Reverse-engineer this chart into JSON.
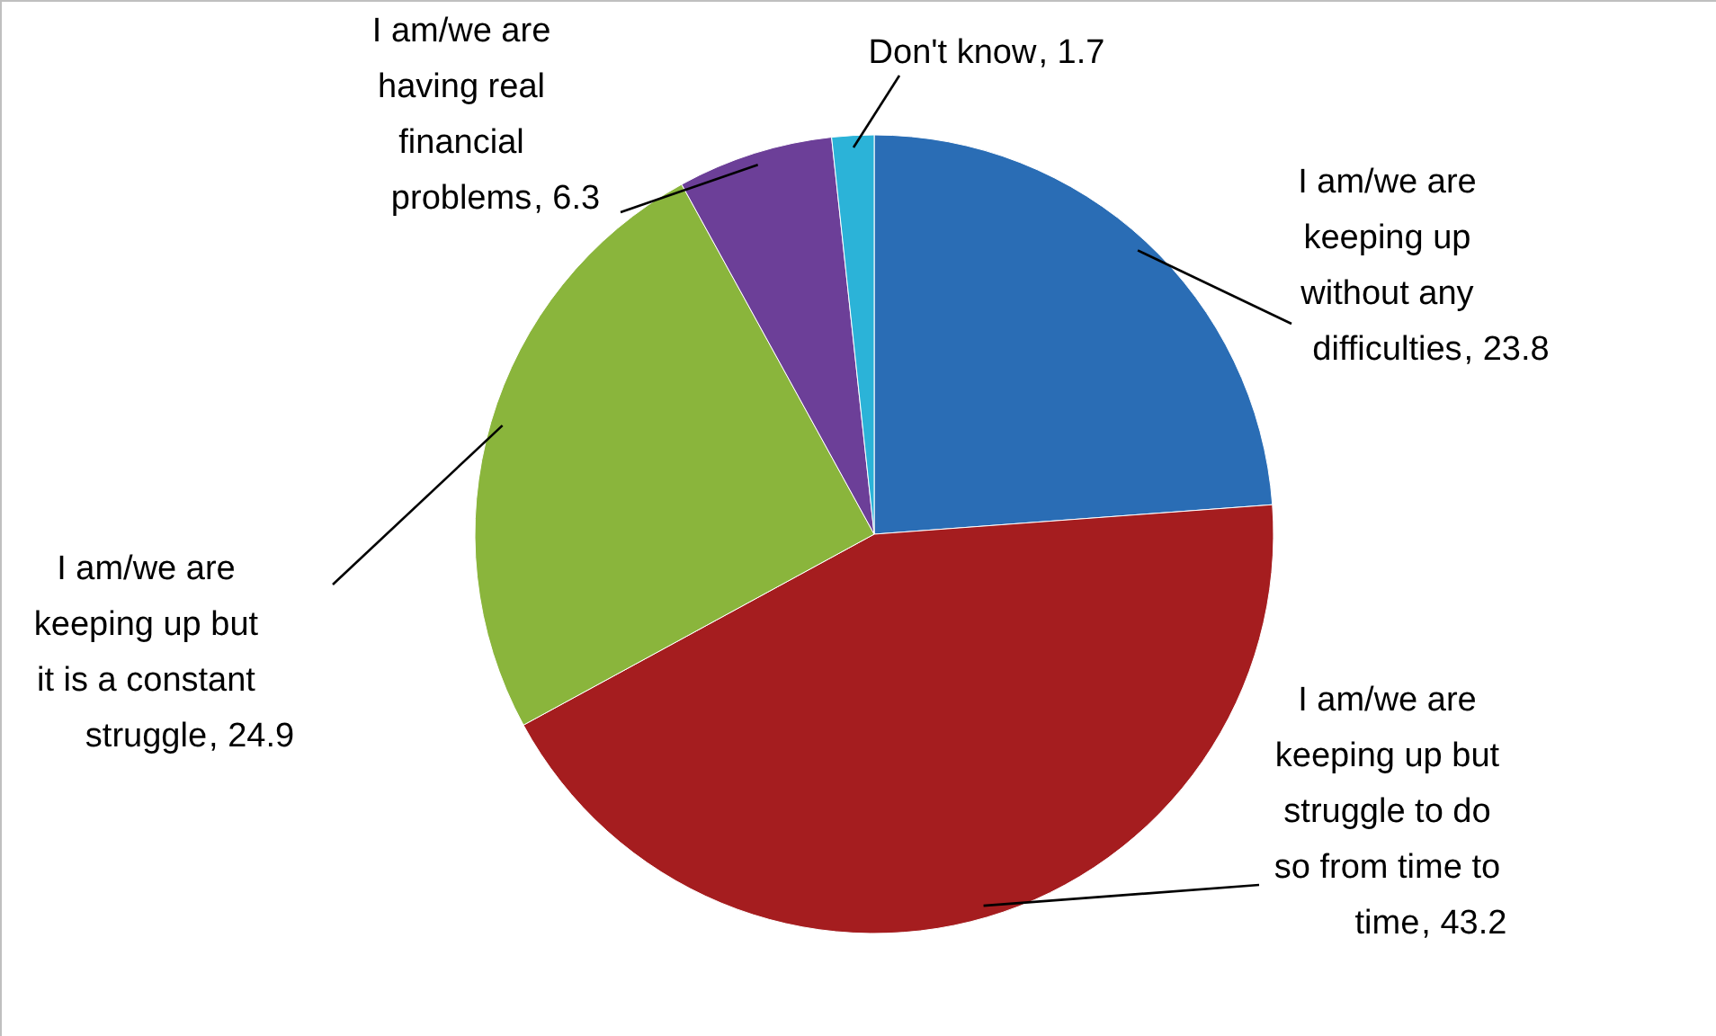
{
  "chart_data": {
    "type": "pie",
    "categories": [
      "I am/we are keeping up without any difficulties",
      "I am/we are keeping up but struggle to do so from time to time",
      "I am/we are keeping up but it is a constant struggle",
      "I am/we are having real financial problems",
      "Don't know"
    ],
    "values": [
      23.8,
      43.2,
      24.9,
      6.3,
      1.7
    ],
    "colors": [
      "#2a6db5",
      "#a51d1f",
      "#8ab53c",
      "#6c3f98",
      "#2bb3d8"
    ],
    "value_labels": [
      ", 23.8",
      ", 43.2",
      ", 24.9",
      ", 6.3",
      ", 1.7"
    ]
  }
}
